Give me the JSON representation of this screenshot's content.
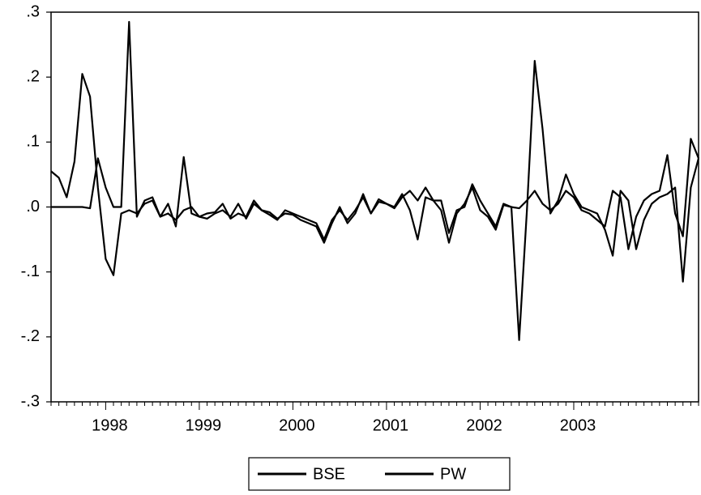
{
  "chart_data": {
    "type": "line",
    "categories": [
      null,
      null,
      null,
      null,
      null,
      null,
      null,
      "1998",
      null,
      null,
      null,
      null,
      null,
      null,
      null,
      null,
      null,
      null,
      null,
      "1999",
      null,
      null,
      null,
      null,
      null,
      null,
      null,
      null,
      null,
      null,
      null,
      "2000",
      null,
      null,
      null,
      null,
      null,
      null,
      null,
      null,
      null,
      null,
      null,
      "2001",
      null,
      null,
      null,
      null,
      null,
      null,
      null,
      null,
      null,
      null,
      null,
      "2002",
      null,
      null,
      null,
      null,
      null,
      null,
      null,
      null,
      null,
      null,
      null,
      "2003",
      null,
      null,
      null,
      null,
      null,
      null,
      null,
      null,
      null,
      null,
      null,
      null,
      null,
      null,
      null,
      null
    ],
    "series": [
      {
        "name": "BSE",
        "color": "#000000",
        "values": [
          0,
          0,
          0,
          0,
          0,
          -0.002,
          0.075,
          0.03,
          0,
          0,
          0.285,
          -0.015,
          0.01,
          0.015,
          -0.015,
          0.005,
          -0.03,
          0.077,
          -0.01,
          -0.015,
          -0.01,
          -0.008,
          0.005,
          -0.018,
          -0.01,
          -0.015,
          0.01,
          -0.005,
          -0.012,
          -0.02,
          -0.005,
          -0.01,
          -0.015,
          -0.02,
          -0.025,
          -0.05,
          -0.02,
          -0.005,
          -0.02,
          -0.005,
          0.015,
          -0.01,
          0.012,
          0.005,
          -0.002,
          0.015,
          0.025,
          0.01,
          0.03,
          0.01,
          0.01,
          -0.04,
          -0.005,
          0,
          0.035,
          0.01,
          -0.01,
          -0.03,
          0.005,
          0,
          -0.002,
          0.01,
          0.025,
          0.005,
          -0.005,
          0.005,
          0.025,
          0.015,
          -0.005,
          -0.01,
          -0.02,
          -0.03,
          0.025,
          0.015,
          -0.065,
          -0.015,
          0.01,
          0.02,
          0.025,
          0.08,
          -0.01,
          -0.045,
          0.105,
          0.075
        ]
      },
      {
        "name": "PW",
        "color": "#000000",
        "values": [
          0.055,
          0.045,
          0.015,
          0.07,
          0.205,
          0.17,
          0.03,
          -0.08,
          -0.105,
          -0.01,
          -0.005,
          -0.01,
          0.005,
          0.01,
          -0.015,
          -0.01,
          -0.02,
          -0.005,
          0,
          -0.015,
          -0.018,
          -0.01,
          -0.005,
          -0.015,
          0.005,
          -0.018,
          0.005,
          -0.005,
          -0.008,
          -0.018,
          -0.01,
          -0.012,
          -0.02,
          -0.025,
          -0.03,
          -0.055,
          -0.025,
          0,
          -0.025,
          -0.01,
          0.02,
          -0.01,
          0.008,
          0.005,
          0,
          0.02,
          -0.005,
          -0.05,
          0.015,
          0.01,
          -0.005,
          -0.055,
          -0.01,
          0.005,
          0.03,
          -0.005,
          -0.015,
          -0.035,
          0.003,
          0,
          -0.205,
          -0.005,
          0.225,
          0.12,
          -0.01,
          0.01,
          0.05,
          0.02,
          0,
          -0.005,
          -0.01,
          -0.035,
          -0.075,
          0.025,
          0.01,
          -0.065,
          -0.02,
          0.005,
          0.015,
          0.02,
          0.03,
          -0.115,
          0.03,
          0.075
        ]
      }
    ],
    "ylim": [
      -0.3,
      0.3
    ],
    "yticks": [
      {
        "value": -0.3,
        "label": "-.3"
      },
      {
        "value": -0.2,
        "label": "-.2"
      },
      {
        "value": -0.1,
        "label": "-.1"
      },
      {
        "value": 0,
        "label": ".0"
      },
      {
        "value": 0.1,
        "label": ".1"
      },
      {
        "value": 0.2,
        "label": ".2"
      },
      {
        "value": 0.3,
        "label": ".3"
      }
    ],
    "legend": "bottom"
  }
}
